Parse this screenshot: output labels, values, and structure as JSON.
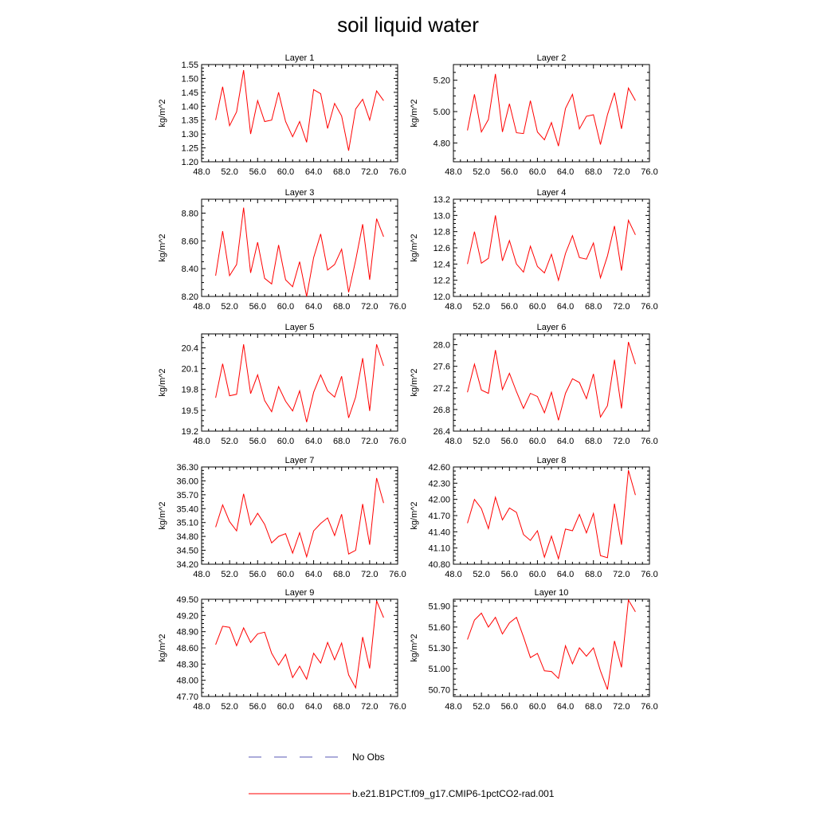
{
  "page": {
    "title": "soil liquid water"
  },
  "legend": {
    "obs_label": "No Obs",
    "obs_color": "#5a5ab4",
    "model_label": "b.e21.B1PCT.f09_g17.CMIP6-1pctCO2-rad.001",
    "model_color": "#ff0000"
  },
  "chart_data": [
    {
      "type": "line",
      "title": "Layer 1",
      "ylabel": "kg/m^2",
      "xlim": [
        48,
        76
      ],
      "xticks": [
        48,
        52,
        56,
        60,
        64,
        68,
        72,
        76
      ],
      "xtick_labels": [
        "48.0",
        "52.0",
        "56.0",
        "60.0",
        "64.0",
        "68.0",
        "72.0",
        "76.0"
      ],
      "ylim": [
        1.2,
        1.55
      ],
      "yticks": [
        1.2,
        1.25,
        1.3,
        1.35,
        1.4,
        1.45,
        1.5,
        1.55
      ],
      "ytick_labels": [
        "1.20",
        "1.25",
        "1.30",
        "1.35",
        "1.40",
        "1.45",
        "1.50",
        "1.55"
      ],
      "series": [
        {
          "name": "b.e21.B1PCT.f09_g17.CMIP6-1pctCO2-rad.001",
          "color": "#ff0000",
          "x": [
            50,
            51,
            52,
            53,
            54,
            55,
            56,
            57,
            58,
            59,
            60,
            61,
            62,
            63,
            64,
            65,
            66,
            67,
            68,
            69,
            70,
            71,
            72,
            73,
            74
          ],
          "y": [
            1.35,
            1.47,
            1.33,
            1.38,
            1.53,
            1.3,
            1.42,
            1.345,
            1.35,
            1.45,
            1.345,
            1.29,
            1.345,
            1.27,
            1.46,
            1.445,
            1.32,
            1.41,
            1.365,
            1.24,
            1.39,
            1.425,
            1.35,
            1.455,
            1.42
          ]
        }
      ]
    },
    {
      "type": "line",
      "title": "Layer 2",
      "ylabel": "kg/m^2",
      "xlim": [
        48,
        76
      ],
      "xticks": [
        48,
        52,
        56,
        60,
        64,
        68,
        72,
        76
      ],
      "xtick_labels": [
        "48.0",
        "52.0",
        "56.0",
        "60.0",
        "64.0",
        "68.0",
        "72.0",
        "76.0"
      ],
      "ylim": [
        4.68,
        5.3
      ],
      "yticks": [
        4.8,
        5.0,
        5.2
      ],
      "ytick_labels": [
        "4.80",
        "5.00",
        "5.20"
      ],
      "series": [
        {
          "name": "b.e21.B1PCT.f09_g17.CMIP6-1pctCO2-rad.001",
          "color": "#ff0000",
          "x": [
            50,
            51,
            52,
            53,
            54,
            55,
            56,
            57,
            58,
            59,
            60,
            61,
            62,
            63,
            64,
            65,
            66,
            67,
            68,
            69,
            70,
            71,
            72,
            73,
            74
          ],
          "y": [
            4.88,
            5.11,
            4.87,
            4.95,
            5.24,
            4.87,
            5.05,
            4.865,
            4.86,
            5.07,
            4.87,
            4.82,
            4.93,
            4.78,
            5.02,
            5.11,
            4.89,
            4.97,
            4.98,
            4.79,
            4.98,
            5.12,
            4.89,
            5.15,
            5.07
          ]
        }
      ]
    },
    {
      "type": "line",
      "title": "Layer 3",
      "ylabel": "kg/m^2",
      "xlim": [
        48,
        76
      ],
      "xticks": [
        48,
        52,
        56,
        60,
        64,
        68,
        72,
        76
      ],
      "xtick_labels": [
        "48.0",
        "52.0",
        "56.0",
        "60.0",
        "64.0",
        "68.0",
        "72.0",
        "76.0"
      ],
      "ylim": [
        8.2,
        8.9
      ],
      "yticks": [
        8.2,
        8.4,
        8.6,
        8.8
      ],
      "ytick_labels": [
        "8.20",
        "8.40",
        "8.60",
        "8.80"
      ],
      "series": [
        {
          "name": "b.e21.B1PCT.f09_g17.CMIP6-1pctCO2-rad.001",
          "color": "#ff0000",
          "x": [
            50,
            51,
            52,
            53,
            54,
            55,
            56,
            57,
            58,
            59,
            60,
            61,
            62,
            63,
            64,
            65,
            66,
            67,
            68,
            69,
            70,
            71,
            72,
            73,
            74
          ],
          "y": [
            8.35,
            8.67,
            8.35,
            8.43,
            8.84,
            8.37,
            8.59,
            8.33,
            8.29,
            8.57,
            8.32,
            8.27,
            8.45,
            8.2,
            8.48,
            8.65,
            8.39,
            8.43,
            8.54,
            8.23,
            8.46,
            8.72,
            8.32,
            8.76,
            8.63
          ]
        }
      ]
    },
    {
      "type": "line",
      "title": "Layer 4",
      "ylabel": "kg/m^2",
      "xlim": [
        48,
        76
      ],
      "xticks": [
        48,
        52,
        56,
        60,
        64,
        68,
        72,
        76
      ],
      "xtick_labels": [
        "48.0",
        "52.0",
        "56.0",
        "60.0",
        "64.0",
        "68.0",
        "72.0",
        "76.0"
      ],
      "ylim": [
        12.0,
        13.2
      ],
      "yticks": [
        12.0,
        12.2,
        12.4,
        12.6,
        12.8,
        13.0,
        13.2
      ],
      "ytick_labels": [
        "12.0",
        "12.2",
        "12.4",
        "12.6",
        "12.8",
        "13.0",
        "13.2"
      ],
      "series": [
        {
          "name": "b.e21.B1PCT.f09_g17.CMIP6-1pctCO2-rad.001",
          "color": "#ff0000",
          "x": [
            50,
            51,
            52,
            53,
            54,
            55,
            56,
            57,
            58,
            59,
            60,
            61,
            62,
            63,
            64,
            65,
            66,
            67,
            68,
            69,
            70,
            71,
            72,
            73,
            74
          ],
          "y": [
            12.4,
            12.8,
            12.41,
            12.47,
            13.0,
            12.44,
            12.69,
            12.4,
            12.3,
            12.62,
            12.37,
            12.29,
            12.52,
            12.2,
            12.53,
            12.75,
            12.48,
            12.46,
            12.66,
            12.23,
            12.5,
            12.87,
            12.32,
            12.94,
            12.76
          ]
        }
      ]
    },
    {
      "type": "line",
      "title": "Layer 5",
      "ylabel": "kg/m^2",
      "xlim": [
        48,
        76
      ],
      "xticks": [
        48,
        52,
        56,
        60,
        64,
        68,
        72,
        76
      ],
      "xtick_labels": [
        "48.0",
        "52.0",
        "56.0",
        "60.0",
        "64.0",
        "68.0",
        "72.0",
        "76.0"
      ],
      "ylim": [
        19.2,
        20.6
      ],
      "yticks": [
        19.2,
        19.5,
        19.8,
        20.1,
        20.4
      ],
      "ytick_labels": [
        "19.2",
        "19.5",
        "19.8",
        "20.1",
        "20.4"
      ],
      "series": [
        {
          "name": "b.e21.B1PCT.f09_g17.CMIP6-1pctCO2-rad.001",
          "color": "#ff0000",
          "x": [
            50,
            51,
            52,
            53,
            54,
            55,
            56,
            57,
            58,
            59,
            60,
            61,
            62,
            63,
            64,
            65,
            66,
            67,
            68,
            69,
            70,
            71,
            72,
            73,
            74
          ],
          "y": [
            19.68,
            20.17,
            19.71,
            19.73,
            20.45,
            19.74,
            20.01,
            19.64,
            19.48,
            19.84,
            19.63,
            19.49,
            19.78,
            19.33,
            19.76,
            20.01,
            19.78,
            19.69,
            19.99,
            19.39,
            19.69,
            20.25,
            19.49,
            20.45,
            20.14
          ]
        }
      ]
    },
    {
      "type": "line",
      "title": "Layer 6",
      "ylabel": "kg/m^2",
      "xlim": [
        48,
        76
      ],
      "xticks": [
        48,
        52,
        56,
        60,
        64,
        68,
        72,
        76
      ],
      "xtick_labels": [
        "48.0",
        "52.0",
        "56.0",
        "60.0",
        "64.0",
        "68.0",
        "72.0",
        "76.0"
      ],
      "ylim": [
        26.4,
        28.2
      ],
      "yticks": [
        26.4,
        26.8,
        27.2,
        27.6,
        28.0
      ],
      "ytick_labels": [
        "26.4",
        "26.8",
        "27.2",
        "27.6",
        "28.0"
      ],
      "series": [
        {
          "name": "b.e21.B1PCT.f09_g17.CMIP6-1pctCO2-rad.001",
          "color": "#ff0000",
          "x": [
            50,
            51,
            52,
            53,
            54,
            55,
            56,
            57,
            58,
            59,
            60,
            61,
            62,
            63,
            64,
            65,
            66,
            67,
            68,
            69,
            70,
            71,
            72,
            73,
            74
          ],
          "y": [
            27.12,
            27.64,
            27.16,
            27.1,
            27.9,
            27.17,
            27.47,
            27.13,
            26.82,
            27.1,
            27.04,
            26.74,
            27.12,
            26.6,
            27.1,
            27.37,
            27.3,
            27.0,
            27.46,
            26.66,
            26.87,
            27.72,
            26.82,
            28.05,
            27.64
          ]
        }
      ]
    },
    {
      "type": "line",
      "title": "Layer 7",
      "ylabel": "kg/m^2",
      "xlim": [
        48,
        76
      ],
      "xticks": [
        48,
        52,
        56,
        60,
        64,
        68,
        72,
        76
      ],
      "xtick_labels": [
        "48.0",
        "52.0",
        "56.0",
        "60.0",
        "64.0",
        "68.0",
        "72.0",
        "76.0"
      ],
      "ylim": [
        34.2,
        36.3
      ],
      "yticks": [
        34.2,
        34.5,
        34.8,
        35.1,
        35.4,
        35.7,
        36.0,
        36.3
      ],
      "ytick_labels": [
        "34.20",
        "34.50",
        "34.80",
        "35.10",
        "35.40",
        "35.70",
        "36.00",
        "36.30"
      ],
      "series": [
        {
          "name": "b.e21.B1PCT.f09_g17.CMIP6-1pctCO2-rad.001",
          "color": "#ff0000",
          "x": [
            50,
            51,
            52,
            53,
            54,
            55,
            56,
            57,
            58,
            59,
            60,
            61,
            62,
            63,
            64,
            65,
            66,
            67,
            68,
            69,
            70,
            71,
            72,
            73,
            74
          ],
          "y": [
            35.0,
            35.48,
            35.12,
            34.92,
            35.72,
            35.05,
            35.3,
            35.06,
            34.66,
            34.8,
            34.86,
            34.44,
            34.88,
            34.36,
            34.92,
            35.08,
            35.2,
            34.82,
            35.28,
            34.42,
            34.5,
            35.5,
            34.62,
            36.06,
            35.52
          ]
        }
      ]
    },
    {
      "type": "line",
      "title": "Layer 8",
      "ylabel": "kg/m^2",
      "xlim": [
        48,
        76
      ],
      "xticks": [
        48,
        52,
        56,
        60,
        64,
        68,
        72,
        76
      ],
      "xtick_labels": [
        "48.0",
        "52.0",
        "56.0",
        "60.0",
        "64.0",
        "68.0",
        "72.0",
        "76.0"
      ],
      "ylim": [
        40.8,
        42.6
      ],
      "yticks": [
        40.8,
        41.1,
        41.4,
        41.7,
        42.0,
        42.3,
        42.6
      ],
      "ytick_labels": [
        "40.80",
        "41.10",
        "41.40",
        "41.70",
        "42.00",
        "42.30",
        "42.60"
      ],
      "series": [
        {
          "name": "b.e21.B1PCT.f09_g17.CMIP6-1pctCO2-rad.001",
          "color": "#ff0000",
          "x": [
            50,
            51,
            52,
            53,
            54,
            55,
            56,
            57,
            58,
            59,
            60,
            61,
            62,
            63,
            64,
            65,
            66,
            67,
            68,
            69,
            70,
            71,
            72,
            73,
            74
          ],
          "y": [
            41.56,
            42.0,
            41.83,
            41.46,
            42.04,
            41.62,
            41.84,
            41.76,
            41.35,
            41.24,
            41.42,
            40.93,
            41.32,
            40.9,
            41.45,
            41.42,
            41.72,
            41.38,
            41.74,
            40.96,
            40.92,
            41.92,
            41.16,
            42.54,
            42.08
          ]
        }
      ]
    },
    {
      "type": "line",
      "title": "Layer 9",
      "ylabel": "kg/m^2",
      "xlim": [
        48,
        76
      ],
      "xticks": [
        48,
        52,
        56,
        60,
        64,
        68,
        72,
        76
      ],
      "xtick_labels": [
        "48.0",
        "52.0",
        "56.0",
        "60.0",
        "64.0",
        "68.0",
        "72.0",
        "76.0"
      ],
      "ylim": [
        47.7,
        49.5
      ],
      "yticks": [
        47.7,
        48.0,
        48.3,
        48.6,
        48.9,
        49.2,
        49.5
      ],
      "ytick_labels": [
        "47.70",
        "48.00",
        "48.30",
        "48.60",
        "48.90",
        "49.20",
        "49.50"
      ],
      "series": [
        {
          "name": "b.e21.B1PCT.f09_g17.CMIP6-1pctCO2-rad.001",
          "color": "#ff0000",
          "x": [
            50,
            51,
            52,
            53,
            54,
            55,
            56,
            57,
            58,
            59,
            60,
            61,
            62,
            63,
            64,
            65,
            66,
            67,
            68,
            69,
            70,
            71,
            72,
            73,
            74
          ],
          "y": [
            48.66,
            49.0,
            48.98,
            48.64,
            48.97,
            48.7,
            48.86,
            48.89,
            48.5,
            48.28,
            48.48,
            48.05,
            48.26,
            48.02,
            48.5,
            48.32,
            48.7,
            48.38,
            48.69,
            48.1,
            47.86,
            48.8,
            48.22,
            49.47,
            49.16
          ]
        }
      ]
    },
    {
      "type": "line",
      "title": "Layer 10",
      "ylabel": "kg/m^2",
      "xlim": [
        48,
        76
      ],
      "xticks": [
        48,
        52,
        56,
        60,
        64,
        68,
        72,
        76
      ],
      "xtick_labels": [
        "48.0",
        "52.0",
        "56.0",
        "60.0",
        "64.0",
        "68.0",
        "72.0",
        "76.0"
      ],
      "ylim": [
        50.6,
        52.0
      ],
      "yticks": [
        50.7,
        51.0,
        51.3,
        51.6,
        51.9
      ],
      "ytick_labels": [
        "50.70",
        "51.00",
        "51.30",
        "51.60",
        "51.90"
      ],
      "series": [
        {
          "name": "b.e21.B1PCT.f09_g17.CMIP6-1pctCO2-rad.001",
          "color": "#ff0000",
          "x": [
            50,
            51,
            52,
            53,
            54,
            55,
            56,
            57,
            58,
            59,
            60,
            61,
            62,
            63,
            64,
            65,
            66,
            67,
            68,
            69,
            70,
            71,
            72,
            73,
            74
          ],
          "y": [
            51.42,
            51.7,
            51.8,
            51.6,
            51.74,
            51.5,
            51.66,
            51.74,
            51.46,
            51.16,
            51.22,
            50.97,
            50.96,
            50.86,
            51.33,
            51.07,
            51.3,
            51.18,
            51.3,
            50.97,
            50.7,
            51.4,
            51.02,
            51.99,
            51.82
          ]
        }
      ]
    }
  ]
}
